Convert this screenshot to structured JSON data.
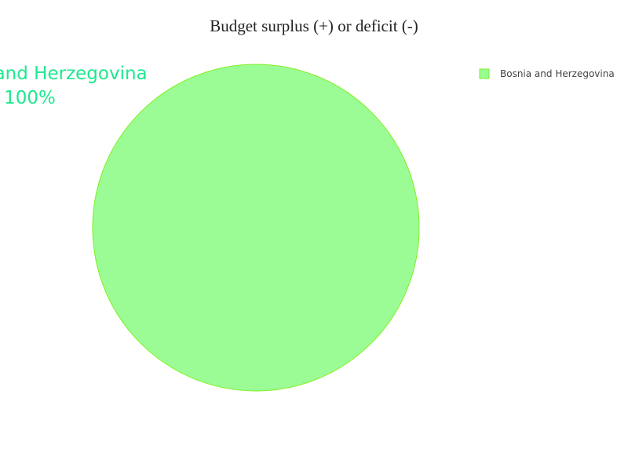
{
  "chart_data": {
    "type": "pie",
    "title": "Budget surplus (+) or deficit (-)",
    "categories": [
      "Bosnia and Herzegovina"
    ],
    "values": [
      100
    ],
    "percent_labels": [
      "100%"
    ],
    "colors": {
      "slice_fill": "#9bfc95",
      "slice_stroke": "#7ef01e",
      "label_text": "#1ee88e"
    },
    "legend": {
      "placement": "top-right",
      "entries": [
        "Bosnia and Herzegovina"
      ]
    }
  }
}
